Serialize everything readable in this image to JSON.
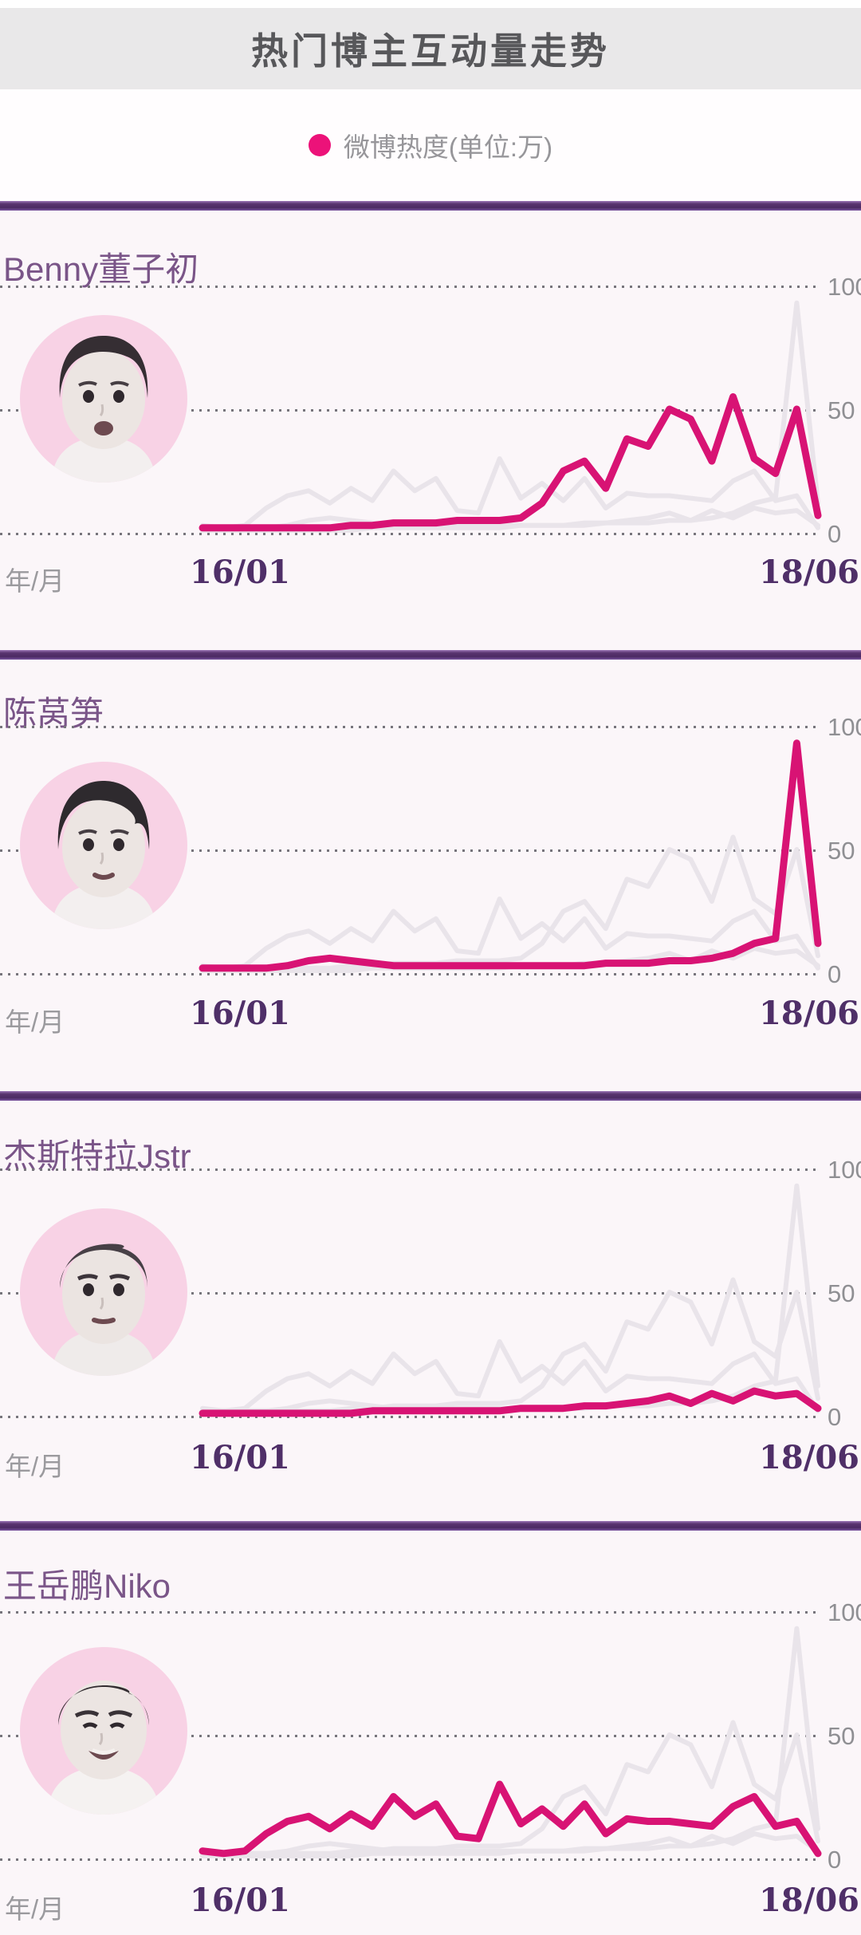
{
  "page": {
    "title": "热门博主互动量走势"
  },
  "legend": {
    "label": "微博热度(单位:万)",
    "dot_color": "#ec1279"
  },
  "axis": {
    "y_ticks": [
      "100",
      "50",
      "0"
    ],
    "x_label": "年/月",
    "x_start": "16/01",
    "x_end": "18/06"
  },
  "colors": {
    "header_bg": "#e9e8e9",
    "panel_bg": "#fbf6f9",
    "divider_purple": "#4b2a63",
    "highlight_line": "#d81374",
    "ghost_line": "#e9e4ea",
    "blogger_name": "#7a5588",
    "date_label": "#4f2f68",
    "avatar_circle": "#f8d2e5"
  },
  "chart_data": {
    "type": "line",
    "title": "热门博主互动量走势",
    "unit": "万",
    "legend": "微博热度(单位:万)",
    "x_axis": {
      "label": "年/月",
      "start": "16/01",
      "end": "18/06",
      "points": 30
    },
    "ylim": [
      0,
      100
    ],
    "y_ticks": [
      100,
      50,
      0
    ],
    "grid": "dotted horizontal lines at 0 / 50 / 100",
    "note": "four stacked panels; each panel highlights one blogger's Weibo-heat series in magenta while the other three series are drawn in faint gray behind it",
    "series": [
      {
        "name": "Benny董子初",
        "values": [
          2,
          2,
          2,
          2,
          2,
          2,
          2,
          3,
          3,
          4,
          4,
          4,
          5,
          5,
          5,
          6,
          12,
          25,
          29,
          18,
          38,
          35,
          50,
          46,
          29,
          55,
          30,
          24,
          50,
          7
        ]
      },
      {
        "name": "陈莴笋",
        "values": [
          2,
          2,
          2,
          2,
          3,
          5,
          6,
          5,
          4,
          3,
          3,
          3,
          3,
          3,
          3,
          3,
          3,
          3,
          3,
          4,
          4,
          4,
          5,
          5,
          6,
          8,
          12,
          14,
          93,
          12
        ]
      },
      {
        "name": "杰斯特拉Jstr",
        "values": [
          1,
          1,
          1,
          1,
          1,
          1,
          1,
          1,
          2,
          2,
          2,
          2,
          2,
          2,
          2,
          3,
          3,
          3,
          4,
          4,
          5,
          6,
          8,
          5,
          9,
          6,
          10,
          8,
          9,
          3
        ]
      },
      {
        "name": "王岳鹏Niko",
        "values": [
          3,
          2,
          3,
          10,
          15,
          17,
          12,
          18,
          13,
          25,
          17,
          22,
          9,
          8,
          30,
          14,
          20,
          13,
          22,
          10,
          16,
          15,
          15,
          14,
          13,
          21,
          25,
          13,
          15,
          2
        ]
      }
    ]
  }
}
